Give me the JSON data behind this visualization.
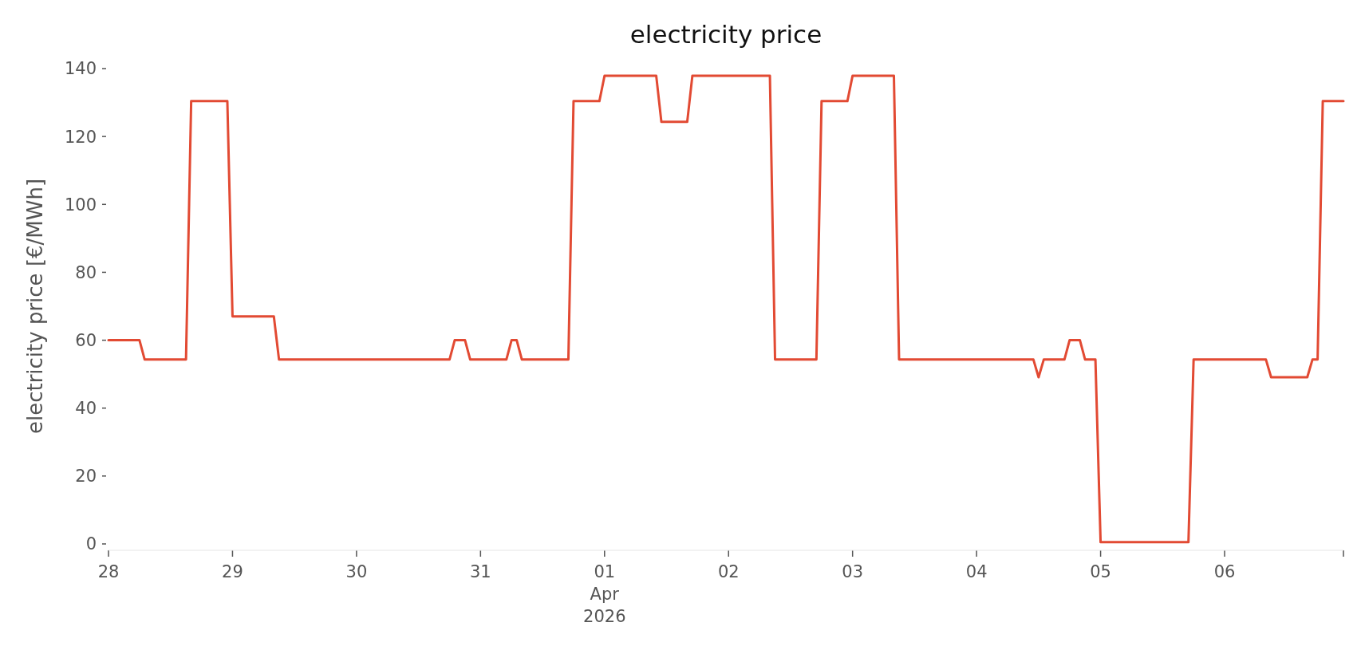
{
  "chart_data": {
    "type": "line",
    "title": "electricity price",
    "ylabel": "electricity price [€/MWh]",
    "series": [
      {
        "color": "#e24a33",
        "x": [
          "2026-03-28T00:00",
          "2026-03-28T06:00",
          "2026-03-28T07:00",
          "2026-03-28T15:00",
          "2026-03-28T16:00",
          "2026-03-28T23:00",
          "2026-03-29T00:00",
          "2026-03-29T08:00",
          "2026-03-29T09:00",
          "2026-03-30T18:00",
          "2026-03-30T19:00",
          "2026-03-30T21:00",
          "2026-03-30T22:00",
          "2026-03-31T05:00",
          "2026-03-31T06:00",
          "2026-03-31T07:00",
          "2026-03-31T08:00",
          "2026-03-31T17:00",
          "2026-03-31T18:00",
          "2026-03-31T23:00",
          "2026-04-01T00:00",
          "2026-04-01T10:00",
          "2026-04-01T11:00",
          "2026-04-01T16:00",
          "2026-04-01T17:00",
          "2026-04-02T08:00",
          "2026-04-02T09:00",
          "2026-04-02T17:00",
          "2026-04-02T18:00",
          "2026-04-02T23:00",
          "2026-04-03T00:00",
          "2026-04-03T08:00",
          "2026-04-03T09:00",
          "2026-04-04T11:00",
          "2026-04-04T12:00",
          "2026-04-04T13:00",
          "2026-04-04T17:00",
          "2026-04-04T18:00",
          "2026-04-04T20:00",
          "2026-04-04T21:00",
          "2026-04-04T23:00",
          "2026-04-05T00:00",
          "2026-04-05T17:00",
          "2026-04-05T18:00",
          "2026-04-06T08:00",
          "2026-04-06T09:00",
          "2026-04-06T16:00",
          "2026-04-06T17:00",
          "2026-04-06T18:00",
          "2026-04-06T19:00",
          "2026-04-06T23:00"
        ],
        "values": [
          60,
          60,
          54.3,
          54.3,
          130.4,
          130.4,
          67,
          67,
          54.3,
          54.3,
          60,
          60,
          54.3,
          54.3,
          60,
          60,
          54.3,
          54.3,
          130.4,
          130.4,
          137.9,
          137.9,
          124.3,
          124.3,
          137.9,
          137.9,
          54.3,
          54.3,
          130.4,
          130.4,
          137.9,
          137.9,
          54.3,
          54.3,
          49.1,
          54.3,
          54.3,
          60,
          60,
          54.3,
          54.3,
          0.5,
          0.5,
          54.3,
          54.3,
          49.1,
          49.1,
          54.3,
          54.3,
          130.4,
          130.4
        ]
      }
    ],
    "xticks": [
      {
        "value": "2026-03-28T00:00",
        "label": "28"
      },
      {
        "value": "2026-03-29T00:00",
        "label": "29"
      },
      {
        "value": "2026-03-30T00:00",
        "label": "30"
      },
      {
        "value": "2026-03-31T00:00",
        "label": "31"
      },
      {
        "value": "2026-04-01T00:00",
        "label": "01\nApr\n2026"
      },
      {
        "value": "2026-04-02T00:00",
        "label": "02"
      },
      {
        "value": "2026-04-03T00:00",
        "label": "03"
      },
      {
        "value": "2026-04-04T00:00",
        "label": "04"
      },
      {
        "value": "2026-04-05T00:00",
        "label": "05"
      },
      {
        "value": "2026-04-06T00:00",
        "label": "06"
      },
      {
        "value": "2026-04-06T23:00",
        "label": null
      }
    ],
    "xlim": [
      "2026-03-28T00:00",
      "2026-04-06T23:00"
    ],
    "ylim": [
      0,
      140
    ],
    "yticks": [
      0,
      20,
      40,
      60,
      80,
      100,
      120,
      140
    ],
    "grid": false,
    "line_style": "solid"
  }
}
